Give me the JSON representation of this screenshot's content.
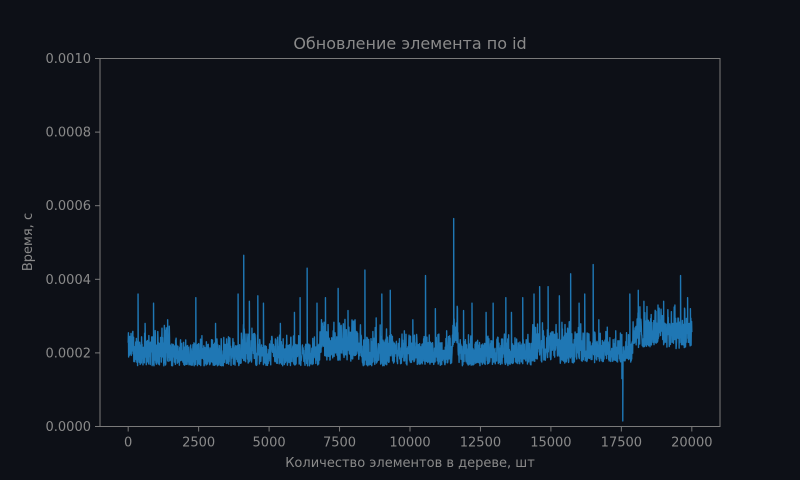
{
  "chart_data": {
    "type": "line",
    "title": "Обновление элемента по id",
    "xlabel": "Количество элементов в дереве, шт",
    "ylabel": "Время, с",
    "xlim": [
      -1000,
      21000
    ],
    "ylim": [
      0,
      0.001
    ],
    "xticks": [
      0,
      2500,
      5000,
      7500,
      10000,
      12500,
      15000,
      17500,
      20000
    ],
    "yticks": [
      0.0,
      0.0002,
      0.0004,
      0.0006,
      0.0008,
      0.001
    ],
    "xtick_labels": [
      "0",
      "2500",
      "5000",
      "7500",
      "10000",
      "12500",
      "15000",
      "17500",
      "20000"
    ],
    "ytick_labels": [
      "0.0000",
      "0.0002",
      "0.0004",
      "0.0006",
      "0.0008",
      "0.0010"
    ],
    "grid": false,
    "colors": {
      "background": "#0d1017",
      "line": "#1f77b4",
      "axis": "#7a7a7a",
      "text": "#8a8a8a"
    },
    "series": [
      {
        "x_range": [
          0,
          20000
        ],
        "segments": [
          {
            "from": 0,
            "to": 300,
            "base": 0.000215,
            "spread": 4e-05
          },
          {
            "from": 300,
            "to": 1500,
            "base": 0.000205,
            "spread": 4e-05
          },
          {
            "from": 1500,
            "to": 4000,
            "base": 0.000195,
            "spread": 3e-05
          },
          {
            "from": 4000,
            "to": 4500,
            "base": 0.000215,
            "spread": 4e-05
          },
          {
            "from": 4500,
            "to": 6800,
            "base": 0.000195,
            "spread": 3e-05
          },
          {
            "from": 6800,
            "to": 8300,
            "base": 0.00022,
            "spread": 4e-05
          },
          {
            "from": 8300,
            "to": 9200,
            "base": 0.000205,
            "spread": 4e-05
          },
          {
            "from": 9200,
            "to": 11500,
            "base": 0.000198,
            "spread": 3e-05
          },
          {
            "from": 11500,
            "to": 11700,
            "base": 0.00026,
            "spread": 4e-05
          },
          {
            "from": 11700,
            "to": 14300,
            "base": 0.000198,
            "spread": 3e-05
          },
          {
            "from": 14300,
            "to": 16500,
            "base": 0.000215,
            "spread": 4e-05
          },
          {
            "from": 16500,
            "to": 17900,
            "base": 0.000205,
            "spread": 3e-05
          },
          {
            "from": 17900,
            "to": 20000,
            "base": 0.000255,
            "spread": 4e-05
          }
        ],
        "spikes": [
          [
            150,
            0.00024
          ],
          [
            350,
            0.00036
          ],
          [
            600,
            0.00028
          ],
          [
            900,
            0.000335
          ],
          [
            1400,
            0.00029
          ],
          [
            2400,
            0.00035
          ],
          [
            3100,
            0.00028
          ],
          [
            3900,
            0.00036
          ],
          [
            4100,
            0.000465
          ],
          [
            4300,
            0.00034
          ],
          [
            4600,
            0.000355
          ],
          [
            4800,
            0.000335
          ],
          [
            5400,
            0.00028
          ],
          [
            5900,
            0.00031
          ],
          [
            6100,
            0.00035
          ],
          [
            6350,
            0.00043
          ],
          [
            6700,
            0.000335
          ],
          [
            7000,
            0.00035
          ],
          [
            7450,
            0.000375
          ],
          [
            7800,
            0.000315
          ],
          [
            8050,
            0.00029
          ],
          [
            8400,
            0.000425
          ],
          [
            8800,
            0.000295
          ],
          [
            9000,
            0.00036
          ],
          [
            9300,
            0.00037
          ],
          [
            9800,
            0.00026
          ],
          [
            10100,
            0.00029
          ],
          [
            10550,
            0.00041
          ],
          [
            10900,
            0.00032
          ],
          [
            11300,
            0.00026
          ],
          [
            11550,
            0.000565
          ],
          [
            11900,
            0.000315
          ],
          [
            12200,
            0.000335
          ],
          [
            12700,
            0.00031
          ],
          [
            12950,
            0.000335
          ],
          [
            13400,
            0.00035
          ],
          [
            13600,
            0.00031
          ],
          [
            14000,
            0.00035
          ],
          [
            14400,
            0.00036
          ],
          [
            14600,
            0.00038
          ],
          [
            14900,
            0.00038
          ],
          [
            15300,
            0.000355
          ],
          [
            15700,
            0.000415
          ],
          [
            16000,
            0.000335
          ],
          [
            16200,
            0.00036
          ],
          [
            16500,
            0.00044
          ],
          [
            16700,
            0.00029
          ],
          [
            17000,
            0.00027
          ],
          [
            17300,
            0.00026
          ],
          [
            17800,
            0.00036
          ],
          [
            18100,
            0.00037
          ],
          [
            18300,
            0.00034
          ],
          [
            18800,
            0.00033
          ],
          [
            19000,
            0.00034
          ],
          [
            19400,
            0.00033
          ],
          [
            19600,
            0.00041
          ],
          [
            19850,
            0.00035
          ],
          [
            19950,
            0.00032
          ]
        ],
        "dips": [
          [
            17550,
            1.5e-05
          ],
          [
            17520,
            0.00013
          ]
        ]
      }
    ]
  }
}
